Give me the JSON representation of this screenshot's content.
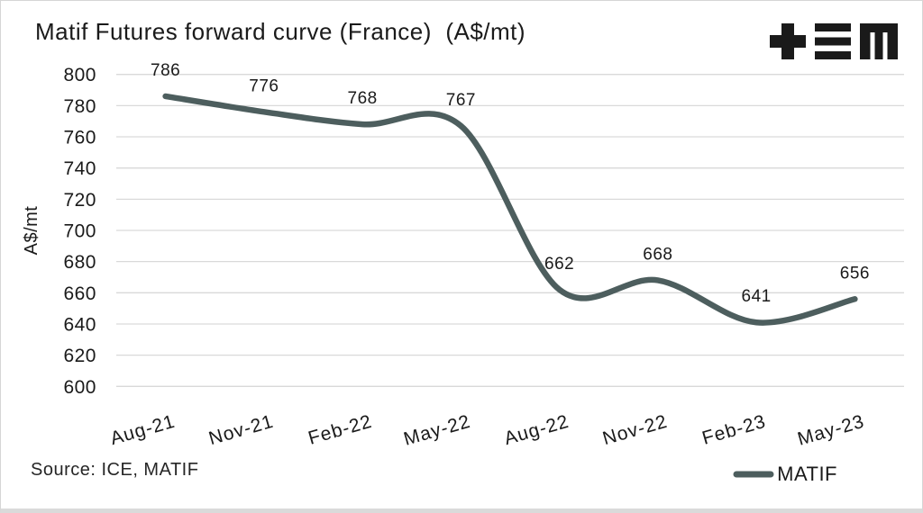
{
  "header": {
    "title": "Matif Futures forward curve (France)  (A$/mt)"
  },
  "logo": {
    "name": "plus-bars-M logo",
    "color": "#1a1a1a"
  },
  "chart_data": {
    "type": "line",
    "categories": [
      "Aug-21",
      "Nov-21",
      "Feb-22",
      "May-22",
      "Aug-22",
      "Nov-22",
      "Feb-23",
      "May-23"
    ],
    "series": [
      {
        "name": "MATIF",
        "values": [
          786,
          776,
          768,
          767,
          662,
          668,
          641,
          656
        ],
        "color": "#4d5e5e"
      }
    ],
    "title": "Matif Futures forward curve (France)  (A$/mt)",
    "xlabel": "",
    "ylabel": "A$/mt",
    "ylim": [
      600,
      800
    ],
    "ytick_step": 20,
    "grid": true,
    "smooth": true,
    "data_labels": true,
    "legend_position": "bottom-right",
    "x_label_rotation_deg": -16
  },
  "footer": {
    "source": "Source: ICE, MATIF",
    "legend_label": "MATIF"
  },
  "colors": {
    "line": "#4d5e5e",
    "grid": "#d9d9d9",
    "text": "#1a1a1a",
    "frame_border": "#d6d6d6"
  }
}
